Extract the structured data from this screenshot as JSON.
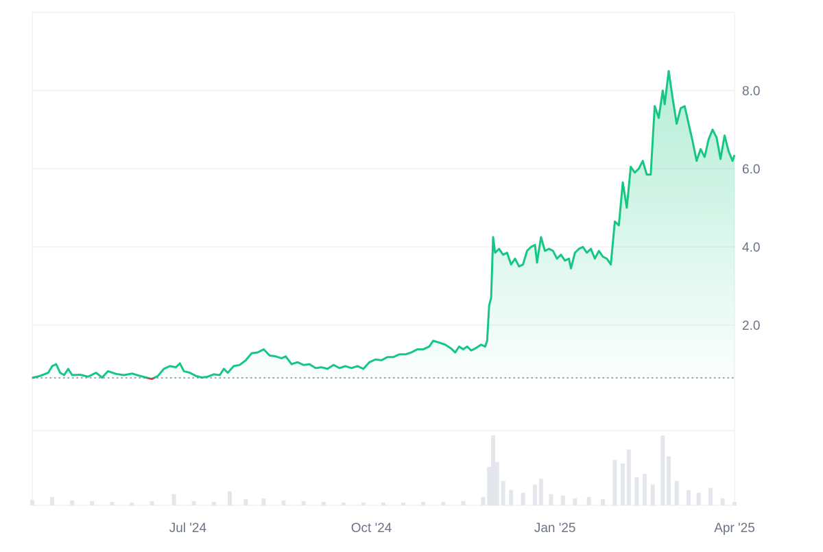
{
  "chart_data": {
    "type": "area",
    "title": "",
    "xlabel": "",
    "ylabel": "",
    "x_range": [
      "2024-04-14",
      "2025-04-01"
    ],
    "ylim": [
      -0.7,
      10.0
    ],
    "y_ticks": [
      {
        "value": 8.0,
        "label": "8.0"
      },
      {
        "value": 6.0,
        "label": "6.0"
      },
      {
        "value": 4.0,
        "label": "4.0"
      },
      {
        "value": 2.0,
        "label": "2.0"
      }
    ],
    "x_ticks": [
      {
        "date": "2024-07-01",
        "label": "Jul '24"
      },
      {
        "date": "2024-10-01",
        "label": "Oct '24"
      },
      {
        "date": "2025-01-01",
        "label": "Jan '25"
      },
      {
        "date": "2025-04-01",
        "label": "Apr '25"
      }
    ],
    "baseline": 0.65,
    "grid": true,
    "legend": "none",
    "colors": {
      "up": "#16c784",
      "down": "#ea3943",
      "grid": "#eff2f5",
      "volume": "#e3e6ea",
      "axis_text": "#6b7385"
    },
    "series": [
      {
        "values": [
          [
            "2024-04-14",
            0.65
          ],
          [
            "2024-04-18",
            0.7
          ],
          [
            "2024-04-22",
            0.78
          ],
          [
            "2024-04-24",
            0.95
          ],
          [
            "2024-04-26",
            1.0
          ],
          [
            "2024-04-28",
            0.78
          ],
          [
            "2024-04-30",
            0.72
          ],
          [
            "2024-05-02",
            0.88
          ],
          [
            "2024-05-04",
            0.72
          ],
          [
            "2024-05-08",
            0.73
          ],
          [
            "2024-05-12",
            0.68
          ],
          [
            "2024-05-16",
            0.78
          ],
          [
            "2024-05-19",
            0.66
          ],
          [
            "2024-05-22",
            0.82
          ],
          [
            "2024-05-26",
            0.75
          ],
          [
            "2024-05-30",
            0.72
          ],
          [
            "2024-06-03",
            0.76
          ],
          [
            "2024-06-07",
            0.7
          ],
          [
            "2024-06-10",
            0.66
          ],
          [
            "2024-06-13",
            0.62
          ],
          [
            "2024-06-16",
            0.7
          ],
          [
            "2024-06-19",
            0.88
          ],
          [
            "2024-06-22",
            0.95
          ],
          [
            "2024-06-25",
            0.92
          ],
          [
            "2024-06-27",
            1.02
          ],
          [
            "2024-06-29",
            0.82
          ],
          [
            "2024-07-02",
            0.78
          ],
          [
            "2024-07-05",
            0.7
          ],
          [
            "2024-07-08",
            0.66
          ],
          [
            "2024-07-11",
            0.68
          ],
          [
            "2024-07-14",
            0.74
          ],
          [
            "2024-07-17",
            0.72
          ],
          [
            "2024-07-19",
            0.88
          ],
          [
            "2024-07-21",
            0.78
          ],
          [
            "2024-07-24",
            0.95
          ],
          [
            "2024-07-27",
            0.98
          ],
          [
            "2024-07-30",
            1.1
          ],
          [
            "2024-08-02",
            1.28
          ],
          [
            "2024-08-05",
            1.3
          ],
          [
            "2024-08-08",
            1.38
          ],
          [
            "2024-08-11",
            1.22
          ],
          [
            "2024-08-14",
            1.2
          ],
          [
            "2024-08-17",
            1.15
          ],
          [
            "2024-08-19",
            1.2
          ],
          [
            "2024-08-22",
            1.0
          ],
          [
            "2024-08-25",
            1.05
          ],
          [
            "2024-08-28",
            0.98
          ],
          [
            "2024-08-31",
            1.0
          ],
          [
            "2024-09-03",
            0.9
          ],
          [
            "2024-09-06",
            0.92
          ],
          [
            "2024-09-09",
            0.88
          ],
          [
            "2024-09-12",
            0.98
          ],
          [
            "2024-09-15",
            0.9
          ],
          [
            "2024-09-18",
            0.95
          ],
          [
            "2024-09-21",
            0.9
          ],
          [
            "2024-09-24",
            0.95
          ],
          [
            "2024-09-27",
            0.88
          ],
          [
            "2024-09-30",
            1.05
          ],
          [
            "2024-10-03",
            1.12
          ],
          [
            "2024-10-06",
            1.1
          ],
          [
            "2024-10-09",
            1.18
          ],
          [
            "2024-10-12",
            1.18
          ],
          [
            "2024-10-15",
            1.25
          ],
          [
            "2024-10-18",
            1.25
          ],
          [
            "2024-10-21",
            1.3
          ],
          [
            "2024-10-24",
            1.38
          ],
          [
            "2024-10-27",
            1.38
          ],
          [
            "2024-10-30",
            1.45
          ],
          [
            "2024-11-01",
            1.6
          ],
          [
            "2024-11-04",
            1.55
          ],
          [
            "2024-11-07",
            1.5
          ],
          [
            "2024-11-10",
            1.4
          ],
          [
            "2024-11-12",
            1.3
          ],
          [
            "2024-11-14",
            1.45
          ],
          [
            "2024-11-16",
            1.38
          ],
          [
            "2024-11-18",
            1.45
          ],
          [
            "2024-11-20",
            1.35
          ],
          [
            "2024-11-22",
            1.4
          ],
          [
            "2024-11-25",
            1.5
          ],
          [
            "2024-11-27",
            1.45
          ],
          [
            "2024-11-28",
            1.6
          ],
          [
            "2024-11-29",
            2.5
          ],
          [
            "2024-11-30",
            2.7
          ],
          [
            "2024-12-01",
            4.25
          ],
          [
            "2024-12-02",
            3.85
          ],
          [
            "2024-12-04",
            3.95
          ],
          [
            "2024-12-06",
            3.8
          ],
          [
            "2024-12-08",
            3.85
          ],
          [
            "2024-12-10",
            3.55
          ],
          [
            "2024-12-12",
            3.7
          ],
          [
            "2024-12-14",
            3.5
          ],
          [
            "2024-12-16",
            3.55
          ],
          [
            "2024-12-18",
            3.9
          ],
          [
            "2024-12-20",
            4.0
          ],
          [
            "2024-12-22",
            4.05
          ],
          [
            "2024-12-23",
            3.6
          ],
          [
            "2024-12-25",
            4.25
          ],
          [
            "2024-12-27",
            3.9
          ],
          [
            "2024-12-29",
            3.95
          ],
          [
            "2024-12-31",
            3.9
          ],
          [
            "2025-01-02",
            3.7
          ],
          [
            "2025-01-04",
            3.8
          ],
          [
            "2025-01-06",
            3.65
          ],
          [
            "2025-01-08",
            3.7
          ],
          [
            "2025-01-09",
            3.45
          ],
          [
            "2025-01-11",
            3.85
          ],
          [
            "2025-01-13",
            3.95
          ],
          [
            "2025-01-15",
            4.0
          ],
          [
            "2025-01-17",
            3.85
          ],
          [
            "2025-01-19",
            3.95
          ],
          [
            "2025-01-21",
            3.7
          ],
          [
            "2025-01-23",
            3.9
          ],
          [
            "2025-01-25",
            3.75
          ],
          [
            "2025-01-27",
            3.7
          ],
          [
            "2025-01-29",
            3.55
          ],
          [
            "2025-01-31",
            4.65
          ],
          [
            "2025-02-02",
            4.55
          ],
          [
            "2025-02-04",
            5.65
          ],
          [
            "2025-02-06",
            5.0
          ],
          [
            "2025-02-08",
            6.05
          ],
          [
            "2025-02-10",
            5.9
          ],
          [
            "2025-02-12",
            6.0
          ],
          [
            "2025-02-14",
            6.2
          ],
          [
            "2025-02-16",
            5.85
          ],
          [
            "2025-02-18",
            5.85
          ],
          [
            "2025-02-20",
            7.6
          ],
          [
            "2025-02-22",
            7.3
          ],
          [
            "2025-02-24",
            8.0
          ],
          [
            "2025-02-25",
            7.65
          ],
          [
            "2025-02-27",
            8.5
          ],
          [
            "2025-03-01",
            7.8
          ],
          [
            "2025-03-03",
            7.15
          ],
          [
            "2025-03-05",
            7.55
          ],
          [
            "2025-03-07",
            7.6
          ],
          [
            "2025-03-09",
            7.15
          ],
          [
            "2025-03-11",
            6.7
          ],
          [
            "2025-03-13",
            6.2
          ],
          [
            "2025-03-15",
            6.5
          ],
          [
            "2025-03-17",
            6.3
          ],
          [
            "2025-03-19",
            6.75
          ],
          [
            "2025-03-21",
            7.0
          ],
          [
            "2025-03-23",
            6.8
          ],
          [
            "2025-03-25",
            6.25
          ],
          [
            "2025-03-27",
            6.85
          ],
          [
            "2025-03-29",
            6.45
          ],
          [
            "2025-03-31",
            6.2
          ],
          [
            "2025-04-01",
            6.35
          ]
        ]
      }
    ],
    "volume": {
      "values": [
        [
          "2024-04-14",
          8
        ],
        [
          "2024-04-24",
          12
        ],
        [
          "2024-05-04",
          7
        ],
        [
          "2024-05-14",
          6
        ],
        [
          "2024-05-24",
          5
        ],
        [
          "2024-06-03",
          4
        ],
        [
          "2024-06-13",
          6
        ],
        [
          "2024-06-24",
          16
        ],
        [
          "2024-07-04",
          6
        ],
        [
          "2024-07-14",
          5
        ],
        [
          "2024-07-22",
          20
        ],
        [
          "2024-07-30",
          9
        ],
        [
          "2024-08-08",
          10
        ],
        [
          "2024-08-18",
          7
        ],
        [
          "2024-08-28",
          6
        ],
        [
          "2024-09-07",
          5
        ],
        [
          "2024-09-17",
          4
        ],
        [
          "2024-09-27",
          4
        ],
        [
          "2024-10-07",
          4
        ],
        [
          "2024-10-17",
          4
        ],
        [
          "2024-10-27",
          5
        ],
        [
          "2024-11-06",
          5
        ],
        [
          "2024-11-16",
          6
        ],
        [
          "2024-11-26",
          12
        ],
        [
          "2024-11-29",
          55
        ],
        [
          "2024-12-01",
          100
        ],
        [
          "2024-12-03",
          62
        ],
        [
          "2024-12-06",
          35
        ],
        [
          "2024-12-10",
          22
        ],
        [
          "2024-12-16",
          18
        ],
        [
          "2024-12-22",
          30
        ],
        [
          "2024-12-25",
          38
        ],
        [
          "2024-12-30",
          16
        ],
        [
          "2025-01-05",
          14
        ],
        [
          "2025-01-11",
          10
        ],
        [
          "2025-01-18",
          12
        ],
        [
          "2025-01-25",
          9
        ],
        [
          "2025-01-31",
          65
        ],
        [
          "2025-02-04",
          60
        ],
        [
          "2025-02-07",
          80
        ],
        [
          "2025-02-11",
          40
        ],
        [
          "2025-02-15",
          45
        ],
        [
          "2025-02-19",
          30
        ],
        [
          "2025-02-24",
          100
        ],
        [
          "2025-02-27",
          70
        ],
        [
          "2025-03-03",
          35
        ],
        [
          "2025-03-09",
          22
        ],
        [
          "2025-03-14",
          18
        ],
        [
          "2025-03-20",
          25
        ],
        [
          "2025-03-26",
          10
        ],
        [
          "2025-04-01",
          5
        ]
      ]
    }
  }
}
